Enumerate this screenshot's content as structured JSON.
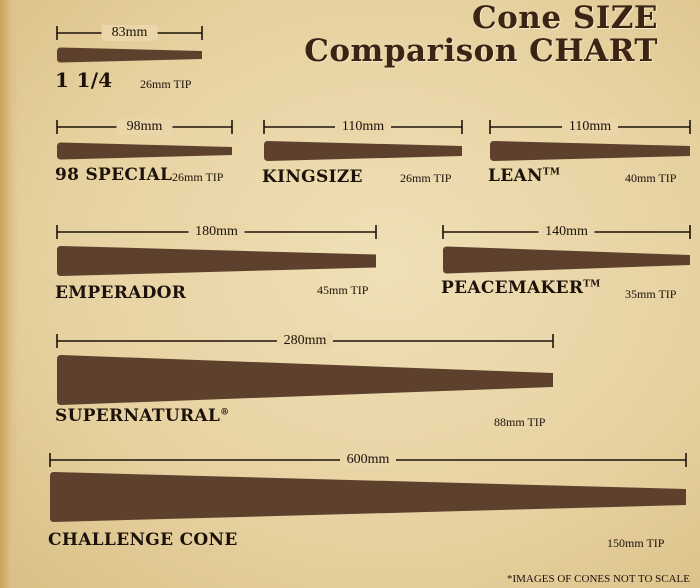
{
  "title": {
    "line1": "Cone SIZE",
    "line2": "Comparison CHART"
  },
  "colors": {
    "cone": "#5e412d",
    "background": "#e8d4a4",
    "text": "#1c120a"
  },
  "cones": [
    {
      "name": "1 1/4",
      "length": "83mm",
      "tip": "26mm TIP",
      "mark": ""
    },
    {
      "name": "98 SPECIAL",
      "length": "98mm",
      "tip": "26mm TIP",
      "mark": ""
    },
    {
      "name": "KINGSIZE",
      "length": "110mm",
      "tip": "26mm TIP",
      "mark": ""
    },
    {
      "name": "LEAN",
      "length": "110mm",
      "tip": "40mm TIP",
      "mark": "TM"
    },
    {
      "name": "EMPERADOR",
      "length": "180mm",
      "tip": "45mm TIP",
      "mark": ""
    },
    {
      "name": "PEACEMAKER",
      "length": "140mm",
      "tip": "35mm TIP",
      "mark": "TM"
    },
    {
      "name": "SUPERNATURAL",
      "length": "280mm",
      "tip": "88mm TIP",
      "mark": "®"
    },
    {
      "name": "CHALLENGE CONE",
      "length": "600mm",
      "tip": "150mm TIP",
      "mark": ""
    }
  ],
  "footnote": "*IMAGES OF CONES NOT TO SCALE"
}
